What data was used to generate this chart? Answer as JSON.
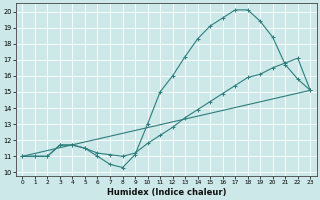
{
  "xlabel": "Humidex (Indice chaleur)",
  "bg_color": "#cce8e8",
  "grid_color": "#ffffff",
  "line_color": "#2e7d7d",
  "xlim": [
    -0.5,
    23.5
  ],
  "ylim": [
    9.8,
    20.5
  ],
  "xticks": [
    0,
    1,
    2,
    3,
    4,
    5,
    6,
    7,
    8,
    9,
    10,
    11,
    12,
    13,
    14,
    15,
    16,
    17,
    18,
    19,
    20,
    21,
    22,
    23
  ],
  "yticks": [
    10,
    11,
    12,
    13,
    14,
    15,
    16,
    17,
    18,
    19,
    20
  ],
  "line1_x": [
    0,
    1,
    2,
    3,
    4,
    5,
    6,
    7,
    8,
    9,
    10,
    11,
    12,
    13,
    14,
    15,
    16,
    17,
    18,
    19,
    20,
    21,
    22,
    23
  ],
  "line1_y": [
    11,
    11,
    11,
    11.7,
    11.7,
    11.5,
    11.0,
    10.5,
    10.3,
    11.1,
    13.0,
    15.0,
    16.0,
    17.2,
    18.3,
    19.1,
    19.6,
    20.1,
    20.1,
    19.4,
    18.4,
    16.7,
    15.8,
    15.1
  ],
  "line2_x": [
    0,
    1,
    2,
    3,
    4,
    5,
    6,
    7,
    8,
    9,
    10,
    11,
    12,
    13,
    14,
    15,
    16,
    17,
    18,
    19,
    20,
    21,
    22,
    23
  ],
  "line2_y": [
    11,
    11,
    11,
    11.7,
    11.7,
    11.5,
    11.2,
    11.1,
    11.0,
    11.2,
    11.8,
    12.3,
    12.8,
    13.4,
    13.9,
    14.4,
    14.9,
    15.4,
    15.9,
    16.1,
    16.5,
    16.8,
    17.1,
    15.1
  ],
  "line3_x": [
    0,
    23
  ],
  "line3_y": [
    11.0,
    15.1
  ]
}
